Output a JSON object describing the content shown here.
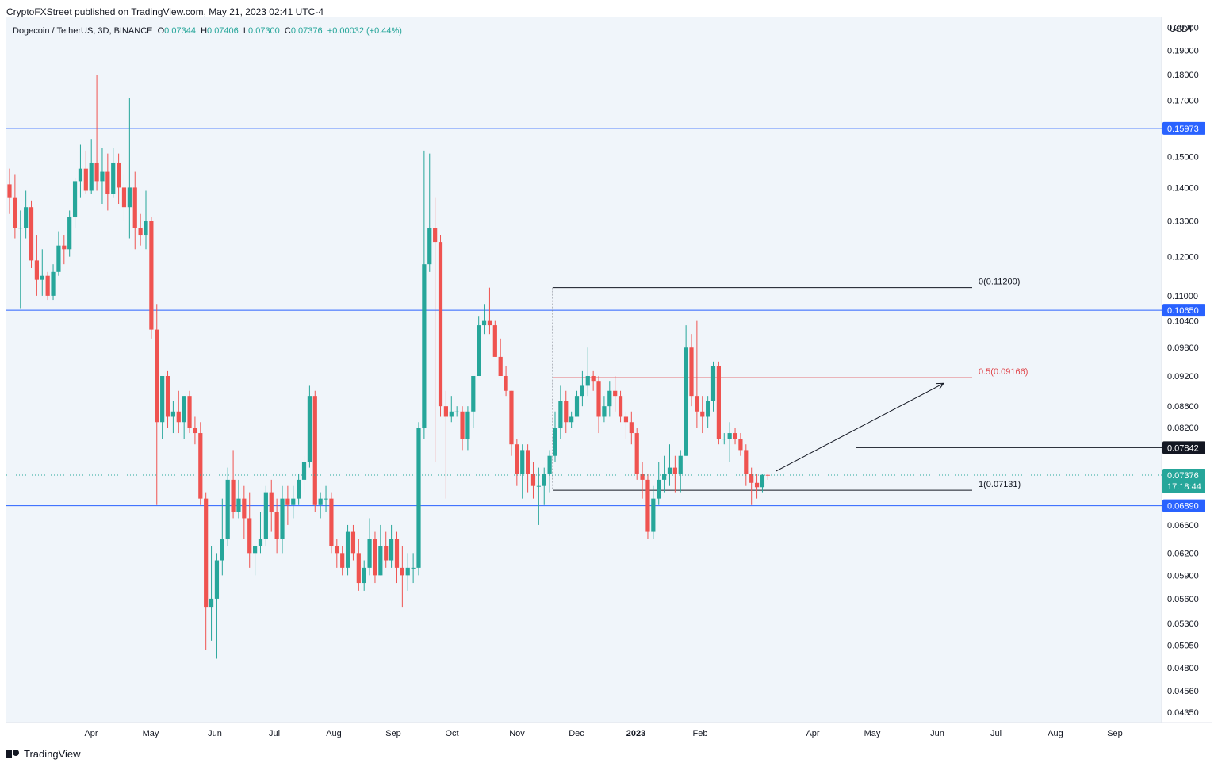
{
  "publisher_line": "CryptoFXStreet published on TradingView.com, May 21, 2023 02:41 UTC-4",
  "brand": "TradingView",
  "legend": {
    "symbol": "Dogecoin / TetherUS, 3D, BINANCE",
    "o_label": "O",
    "o": "0.07344",
    "h_label": "H",
    "h": "0.07406",
    "l_label": "L",
    "l": "0.07300",
    "c_label": "C",
    "c": "0.07376",
    "change": "+0.00032 (+0.44%)"
  },
  "colors": {
    "up": "#26a69a",
    "down": "#ef5350",
    "level_line": "#2962ff",
    "fib_mid": "#e0474c",
    "background": "#f0f5fa"
  },
  "chart_data": {
    "type": "candlestick",
    "y_unit": "USDT",
    "y_scale": "log",
    "ylim": [
      0.0425,
      0.2045
    ],
    "y_ticks": [
      "0.20000",
      "0.19000",
      "0.18000",
      "0.17000",
      "0.15000",
      "0.14000",
      "0.13000",
      "0.12000",
      "0.11000",
      "0.10400",
      "0.09800",
      "0.09200",
      "0.08600",
      "0.08200",
      "0.06600",
      "0.06200",
      "0.05900",
      "0.05600",
      "0.05300",
      "0.05050",
      "0.04800",
      "0.04560",
      "0.04350"
    ],
    "x_ticks": [
      {
        "label": "Apr",
        "bold": false
      },
      {
        "label": "May",
        "bold": false
      },
      {
        "label": "Jun",
        "bold": false
      },
      {
        "label": "Jul",
        "bold": false
      },
      {
        "label": "Aug",
        "bold": false
      },
      {
        "label": "Sep",
        "bold": false
      },
      {
        "label": "Oct",
        "bold": false
      },
      {
        "label": "Nov",
        "bold": false
      },
      {
        "label": "Dec",
        "bold": false
      },
      {
        "label": "2023",
        "bold": true
      },
      {
        "label": "Feb",
        "bold": false
      },
      {
        "label": "Apr",
        "bold": false
      },
      {
        "label": "May",
        "bold": false
      },
      {
        "label": "Jun",
        "bold": false
      },
      {
        "label": "Jul",
        "bold": false
      },
      {
        "label": "Aug",
        "bold": false
      },
      {
        "label": "Sep",
        "bold": false
      }
    ],
    "horizontal_levels": [
      {
        "value": 0.15973,
        "label": "0.15973"
      },
      {
        "value": 0.1065,
        "label": "0.10650"
      },
      {
        "value": 0.0689,
        "label": "0.06890"
      }
    ],
    "resistance_level": {
      "value": 0.07842,
      "label": "0.07842"
    },
    "current_price": {
      "value": 0.07376,
      "label": "0.07376",
      "countdown": "17:18:44"
    },
    "fib_retracement": [
      {
        "level": "0",
        "value": 0.112,
        "label": "0(0.11200)"
      },
      {
        "level": "0.5",
        "value": 0.09166,
        "label": "0.5(0.09166)"
      },
      {
        "level": "1",
        "value": 0.07131,
        "label": "1(0.07131)"
      }
    ],
    "projection_arrow": {
      "from": 0.0744,
      "to": 0.0905
    },
    "candles": [
      [
        0.141,
        0.146,
        0.132,
        0.137
      ],
      [
        0.137,
        0.144,
        0.125,
        0.128
      ],
      [
        0.128,
        0.133,
        0.107,
        0.128
      ],
      [
        0.128,
        0.139,
        0.125,
        0.134
      ],
      [
        0.134,
        0.136,
        0.117,
        0.119
      ],
      [
        0.119,
        0.126,
        0.11,
        0.114
      ],
      [
        0.114,
        0.122,
        0.11,
        0.115
      ],
      [
        0.115,
        0.116,
        0.109,
        0.11
      ],
      [
        0.11,
        0.118,
        0.109,
        0.116
      ],
      [
        0.116,
        0.127,
        0.115,
        0.123
      ],
      [
        0.123,
        0.126,
        0.118,
        0.122
      ],
      [
        0.122,
        0.133,
        0.12,
        0.131
      ],
      [
        0.131,
        0.143,
        0.128,
        0.142
      ],
      [
        0.142,
        0.154,
        0.137,
        0.146
      ],
      [
        0.146,
        0.152,
        0.138,
        0.139
      ],
      [
        0.139,
        0.156,
        0.138,
        0.148
      ],
      [
        0.148,
        0.18,
        0.139,
        0.142
      ],
      [
        0.142,
        0.153,
        0.135,
        0.145
      ],
      [
        0.145,
        0.151,
        0.133,
        0.138
      ],
      [
        0.138,
        0.153,
        0.137,
        0.148
      ],
      [
        0.148,
        0.151,
        0.135,
        0.14
      ],
      [
        0.14,
        0.144,
        0.13,
        0.134
      ],
      [
        0.134,
        0.171,
        0.125,
        0.14
      ],
      [
        0.14,
        0.145,
        0.122,
        0.128
      ],
      [
        0.128,
        0.132,
        0.123,
        0.126
      ],
      [
        0.126,
        0.139,
        0.122,
        0.13
      ],
      [
        0.13,
        0.131,
        0.1,
        0.102
      ],
      [
        0.102,
        0.108,
        0.069,
        0.083
      ],
      [
        0.083,
        0.092,
        0.08,
        0.092
      ],
      [
        0.092,
        0.093,
        0.082,
        0.084
      ],
      [
        0.084,
        0.087,
        0.081,
        0.085
      ],
      [
        0.085,
        0.089,
        0.081,
        0.083
      ],
      [
        0.083,
        0.088,
        0.08,
        0.088
      ],
      [
        0.088,
        0.089,
        0.081,
        0.082
      ],
      [
        0.082,
        0.084,
        0.079,
        0.081
      ],
      [
        0.081,
        0.083,
        0.069,
        0.07
      ],
      [
        0.07,
        0.071,
        0.05,
        0.055
      ],
      [
        0.055,
        0.063,
        0.051,
        0.056
      ],
      [
        0.056,
        0.062,
        0.049,
        0.061
      ],
      [
        0.061,
        0.07,
        0.059,
        0.064
      ],
      [
        0.064,
        0.075,
        0.063,
        0.073
      ],
      [
        0.073,
        0.078,
        0.067,
        0.068
      ],
      [
        0.068,
        0.073,
        0.067,
        0.07
      ],
      [
        0.07,
        0.072,
        0.064,
        0.067
      ],
      [
        0.067,
        0.071,
        0.06,
        0.062
      ],
      [
        0.062,
        0.063,
        0.059,
        0.063
      ],
      [
        0.063,
        0.068,
        0.062,
        0.064
      ],
      [
        0.064,
        0.072,
        0.063,
        0.071
      ],
      [
        0.071,
        0.073,
        0.065,
        0.068
      ],
      [
        0.068,
        0.07,
        0.062,
        0.064
      ],
      [
        0.064,
        0.072,
        0.062,
        0.07
      ],
      [
        0.07,
        0.072,
        0.066,
        0.069
      ],
      [
        0.069,
        0.072,
        0.067,
        0.07
      ],
      [
        0.07,
        0.074,
        0.069,
        0.073
      ],
      [
        0.073,
        0.077,
        0.071,
        0.076
      ],
      [
        0.076,
        0.09,
        0.075,
        0.088
      ],
      [
        0.088,
        0.089,
        0.068,
        0.069
      ],
      [
        0.069,
        0.071,
        0.067,
        0.07
      ],
      [
        0.07,
        0.072,
        0.068,
        0.07
      ],
      [
        0.07,
        0.071,
        0.062,
        0.063
      ],
      [
        0.063,
        0.064,
        0.06,
        0.062
      ],
      [
        0.062,
        0.063,
        0.059,
        0.06
      ],
      [
        0.06,
        0.066,
        0.059,
        0.065
      ],
      [
        0.065,
        0.066,
        0.061,
        0.062
      ],
      [
        0.062,
        0.064,
        0.057,
        0.058
      ],
      [
        0.058,
        0.061,
        0.057,
        0.06
      ],
      [
        0.06,
        0.067,
        0.059,
        0.064
      ],
      [
        0.064,
        0.065,
        0.058,
        0.059
      ],
      [
        0.059,
        0.066,
        0.059,
        0.063
      ],
      [
        0.063,
        0.065,
        0.06,
        0.061
      ],
      [
        0.061,
        0.066,
        0.06,
        0.064
      ],
      [
        0.064,
        0.065,
        0.058,
        0.06
      ],
      [
        0.06,
        0.063,
        0.055,
        0.059
      ],
      [
        0.059,
        0.062,
        0.057,
        0.06
      ],
      [
        0.06,
        0.062,
        0.058,
        0.06
      ],
      [
        0.06,
        0.083,
        0.059,
        0.082
      ],
      [
        0.082,
        0.152,
        0.08,
        0.118
      ],
      [
        0.118,
        0.151,
        0.116,
        0.128
      ],
      [
        0.128,
        0.137,
        0.076,
        0.124
      ],
      [
        0.124,
        0.126,
        0.084,
        0.086
      ],
      [
        0.086,
        0.089,
        0.07,
        0.084
      ],
      [
        0.084,
        0.088,
        0.083,
        0.085
      ],
      [
        0.085,
        0.086,
        0.084,
        0.085
      ],
      [
        0.085,
        0.086,
        0.078,
        0.08
      ],
      [
        0.08,
        0.086,
        0.078,
        0.085
      ],
      [
        0.085,
        0.092,
        0.082,
        0.092
      ],
      [
        0.092,
        0.105,
        0.092,
        0.103
      ],
      [
        0.103,
        0.108,
        0.101,
        0.104
      ],
      [
        0.104,
        0.112,
        0.101,
        0.103
      ],
      [
        0.103,
        0.104,
        0.096,
        0.096
      ],
      [
        0.096,
        0.1,
        0.092,
        0.092
      ],
      [
        0.092,
        0.094,
        0.088,
        0.089
      ],
      [
        0.089,
        0.089,
        0.077,
        0.079
      ],
      [
        0.079,
        0.08,
        0.072,
        0.074
      ],
      [
        0.074,
        0.079,
        0.07,
        0.078
      ],
      [
        0.078,
        0.079,
        0.071,
        0.074
      ],
      [
        0.074,
        0.076,
        0.07,
        0.072
      ],
      [
        0.072,
        0.075,
        0.066,
        0.072
      ],
      [
        0.072,
        0.075,
        0.069,
        0.074
      ],
      [
        0.074,
        0.078,
        0.071,
        0.077
      ],
      [
        0.077,
        0.085,
        0.076,
        0.082
      ],
      [
        0.082,
        0.09,
        0.08,
        0.087
      ],
      [
        0.087,
        0.089,
        0.081,
        0.083
      ],
      [
        0.083,
        0.085,
        0.082,
        0.084
      ],
      [
        0.084,
        0.089,
        0.084,
        0.088
      ],
      [
        0.088,
        0.093,
        0.086,
        0.09
      ],
      [
        0.09,
        0.098,
        0.088,
        0.092
      ],
      [
        0.092,
        0.093,
        0.089,
        0.091
      ],
      [
        0.091,
        0.092,
        0.081,
        0.084
      ],
      [
        0.084,
        0.088,
        0.083,
        0.086
      ],
      [
        0.086,
        0.091,
        0.084,
        0.089
      ],
      [
        0.089,
        0.092,
        0.085,
        0.088
      ],
      [
        0.088,
        0.089,
        0.083,
        0.084
      ],
      [
        0.084,
        0.085,
        0.08,
        0.083
      ],
      [
        0.083,
        0.085,
        0.079,
        0.081
      ],
      [
        0.081,
        0.082,
        0.073,
        0.074
      ],
      [
        0.074,
        0.076,
        0.07,
        0.073
      ],
      [
        0.073,
        0.074,
        0.064,
        0.065
      ],
      [
        0.065,
        0.072,
        0.064,
        0.07
      ],
      [
        0.07,
        0.076,
        0.069,
        0.073
      ],
      [
        0.073,
        0.077,
        0.071,
        0.074
      ],
      [
        0.074,
        0.079,
        0.072,
        0.075
      ],
      [
        0.075,
        0.077,
        0.071,
        0.074
      ],
      [
        0.074,
        0.078,
        0.071,
        0.077
      ],
      [
        0.077,
        0.103,
        0.077,
        0.098
      ],
      [
        0.098,
        0.101,
        0.086,
        0.088
      ],
      [
        0.088,
        0.104,
        0.082,
        0.085
      ],
      [
        0.085,
        0.088,
        0.081,
        0.084
      ],
      [
        0.084,
        0.088,
        0.082,
        0.087
      ],
      [
        0.087,
        0.095,
        0.085,
        0.094
      ],
      [
        0.094,
        0.095,
        0.079,
        0.08
      ],
      [
        0.08,
        0.081,
        0.079,
        0.08
      ],
      [
        0.08,
        0.083,
        0.076,
        0.081
      ],
      [
        0.081,
        0.082,
        0.079,
        0.08
      ],
      [
        0.08,
        0.081,
        0.077,
        0.078
      ],
      [
        0.078,
        0.079,
        0.072,
        0.074
      ],
      [
        0.074,
        0.075,
        0.069,
        0.0725
      ],
      [
        0.0725,
        0.074,
        0.07,
        0.0718
      ],
      [
        0.0718,
        0.074,
        0.071,
        0.0738
      ],
      [
        0.0738,
        0.074,
        0.073,
        0.0737
      ]
    ]
  }
}
